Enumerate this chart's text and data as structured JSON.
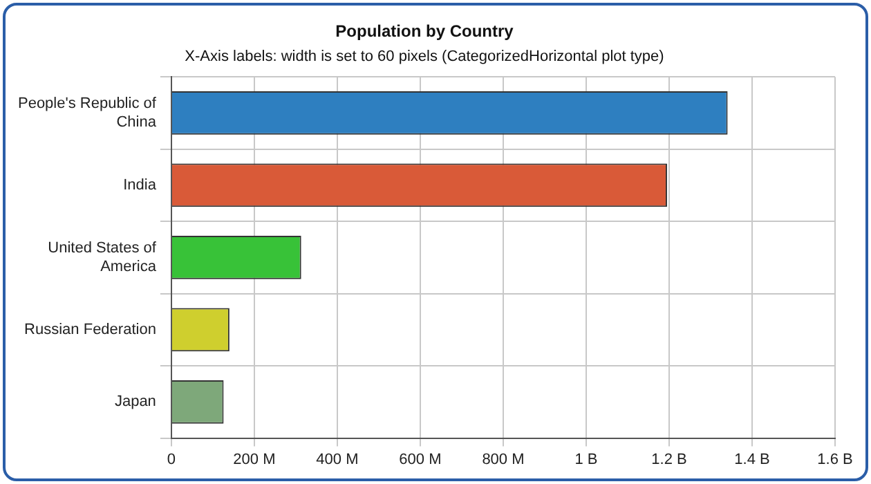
{
  "chart_data": {
    "type": "bar",
    "orientation": "horizontal",
    "title": "Population by Country",
    "subtitle": "X-Axis labels: width is set to 60 pixels (CategorizedHorizontal plot type)",
    "categories": [
      "People's Republic of China",
      "India",
      "United States of America",
      "Russian Federation",
      "Japan"
    ],
    "values": [
      1341000000,
      1195000000,
      313000000,
      140000000,
      126000000
    ],
    "colors": [
      "#2e7fc0",
      "#d95a38",
      "#38c238",
      "#cfcf2e",
      "#7ea87a"
    ],
    "xlim": [
      0,
      1600000000
    ],
    "xticks": [
      {
        "value": 0,
        "label": "0"
      },
      {
        "value": 200000000,
        "label": "200 M"
      },
      {
        "value": 400000000,
        "label": "400 M"
      },
      {
        "value": 600000000,
        "label": "600 M"
      },
      {
        "value": 800000000,
        "label": "800 M"
      },
      {
        "value": 1000000000,
        "label": "1 B"
      },
      {
        "value": 1200000000,
        "label": "1.2 B"
      },
      {
        "value": 1400000000,
        "label": "1.4 B"
      },
      {
        "value": 1600000000,
        "label": "1.6 B"
      }
    ],
    "grid": true
  }
}
